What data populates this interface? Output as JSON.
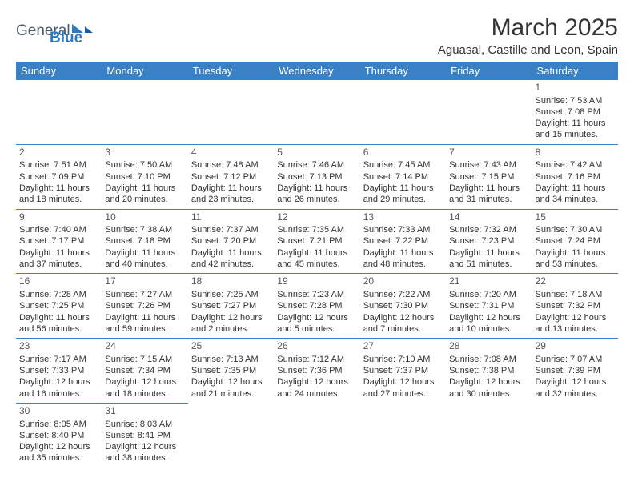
{
  "logo": {
    "general": "General",
    "blue": "Blue"
  },
  "title": "March 2025",
  "location": "Aguasal, Castille and Leon, Spain",
  "header_bg": "#3a80c4",
  "header_text_color": "#ffffff",
  "border_color": "#3a80c4",
  "weekdays": [
    "Sunday",
    "Monday",
    "Tuesday",
    "Wednesday",
    "Thursday",
    "Friday",
    "Saturday"
  ],
  "weeks": [
    [
      null,
      null,
      null,
      null,
      null,
      null,
      {
        "d": "1",
        "sr": "Sunrise: 7:53 AM",
        "ss": "Sunset: 7:08 PM",
        "dl": "Daylight: 11 hours and 15 minutes."
      }
    ],
    [
      {
        "d": "2",
        "sr": "Sunrise: 7:51 AM",
        "ss": "Sunset: 7:09 PM",
        "dl": "Daylight: 11 hours and 18 minutes."
      },
      {
        "d": "3",
        "sr": "Sunrise: 7:50 AM",
        "ss": "Sunset: 7:10 PM",
        "dl": "Daylight: 11 hours and 20 minutes."
      },
      {
        "d": "4",
        "sr": "Sunrise: 7:48 AM",
        "ss": "Sunset: 7:12 PM",
        "dl": "Daylight: 11 hours and 23 minutes."
      },
      {
        "d": "5",
        "sr": "Sunrise: 7:46 AM",
        "ss": "Sunset: 7:13 PM",
        "dl": "Daylight: 11 hours and 26 minutes."
      },
      {
        "d": "6",
        "sr": "Sunrise: 7:45 AM",
        "ss": "Sunset: 7:14 PM",
        "dl": "Daylight: 11 hours and 29 minutes."
      },
      {
        "d": "7",
        "sr": "Sunrise: 7:43 AM",
        "ss": "Sunset: 7:15 PM",
        "dl": "Daylight: 11 hours and 31 minutes."
      },
      {
        "d": "8",
        "sr": "Sunrise: 7:42 AM",
        "ss": "Sunset: 7:16 PM",
        "dl": "Daylight: 11 hours and 34 minutes."
      }
    ],
    [
      {
        "d": "9",
        "sr": "Sunrise: 7:40 AM",
        "ss": "Sunset: 7:17 PM",
        "dl": "Daylight: 11 hours and 37 minutes."
      },
      {
        "d": "10",
        "sr": "Sunrise: 7:38 AM",
        "ss": "Sunset: 7:18 PM",
        "dl": "Daylight: 11 hours and 40 minutes."
      },
      {
        "d": "11",
        "sr": "Sunrise: 7:37 AM",
        "ss": "Sunset: 7:20 PM",
        "dl": "Daylight: 11 hours and 42 minutes."
      },
      {
        "d": "12",
        "sr": "Sunrise: 7:35 AM",
        "ss": "Sunset: 7:21 PM",
        "dl": "Daylight: 11 hours and 45 minutes."
      },
      {
        "d": "13",
        "sr": "Sunrise: 7:33 AM",
        "ss": "Sunset: 7:22 PM",
        "dl": "Daylight: 11 hours and 48 minutes."
      },
      {
        "d": "14",
        "sr": "Sunrise: 7:32 AM",
        "ss": "Sunset: 7:23 PM",
        "dl": "Daylight: 11 hours and 51 minutes."
      },
      {
        "d": "15",
        "sr": "Sunrise: 7:30 AM",
        "ss": "Sunset: 7:24 PM",
        "dl": "Daylight: 11 hours and 53 minutes."
      }
    ],
    [
      {
        "d": "16",
        "sr": "Sunrise: 7:28 AM",
        "ss": "Sunset: 7:25 PM",
        "dl": "Daylight: 11 hours and 56 minutes."
      },
      {
        "d": "17",
        "sr": "Sunrise: 7:27 AM",
        "ss": "Sunset: 7:26 PM",
        "dl": "Daylight: 11 hours and 59 minutes."
      },
      {
        "d": "18",
        "sr": "Sunrise: 7:25 AM",
        "ss": "Sunset: 7:27 PM",
        "dl": "Daylight: 12 hours and 2 minutes."
      },
      {
        "d": "19",
        "sr": "Sunrise: 7:23 AM",
        "ss": "Sunset: 7:28 PM",
        "dl": "Daylight: 12 hours and 5 minutes."
      },
      {
        "d": "20",
        "sr": "Sunrise: 7:22 AM",
        "ss": "Sunset: 7:30 PM",
        "dl": "Daylight: 12 hours and 7 minutes."
      },
      {
        "d": "21",
        "sr": "Sunrise: 7:20 AM",
        "ss": "Sunset: 7:31 PM",
        "dl": "Daylight: 12 hours and 10 minutes."
      },
      {
        "d": "22",
        "sr": "Sunrise: 7:18 AM",
        "ss": "Sunset: 7:32 PM",
        "dl": "Daylight: 12 hours and 13 minutes."
      }
    ],
    [
      {
        "d": "23",
        "sr": "Sunrise: 7:17 AM",
        "ss": "Sunset: 7:33 PM",
        "dl": "Daylight: 12 hours and 16 minutes."
      },
      {
        "d": "24",
        "sr": "Sunrise: 7:15 AM",
        "ss": "Sunset: 7:34 PM",
        "dl": "Daylight: 12 hours and 18 minutes."
      },
      {
        "d": "25",
        "sr": "Sunrise: 7:13 AM",
        "ss": "Sunset: 7:35 PM",
        "dl": "Daylight: 12 hours and 21 minutes."
      },
      {
        "d": "26",
        "sr": "Sunrise: 7:12 AM",
        "ss": "Sunset: 7:36 PM",
        "dl": "Daylight: 12 hours and 24 minutes."
      },
      {
        "d": "27",
        "sr": "Sunrise: 7:10 AM",
        "ss": "Sunset: 7:37 PM",
        "dl": "Daylight: 12 hours and 27 minutes."
      },
      {
        "d": "28",
        "sr": "Sunrise: 7:08 AM",
        "ss": "Sunset: 7:38 PM",
        "dl": "Daylight: 12 hours and 30 minutes."
      },
      {
        "d": "29",
        "sr": "Sunrise: 7:07 AM",
        "ss": "Sunset: 7:39 PM",
        "dl": "Daylight: 12 hours and 32 minutes."
      }
    ],
    [
      {
        "d": "30",
        "sr": "Sunrise: 8:05 AM",
        "ss": "Sunset: 8:40 PM",
        "dl": "Daylight: 12 hours and 35 minutes."
      },
      {
        "d": "31",
        "sr": "Sunrise: 8:03 AM",
        "ss": "Sunset: 8:41 PM",
        "dl": "Daylight: 12 hours and 38 minutes."
      },
      null,
      null,
      null,
      null,
      null
    ]
  ]
}
